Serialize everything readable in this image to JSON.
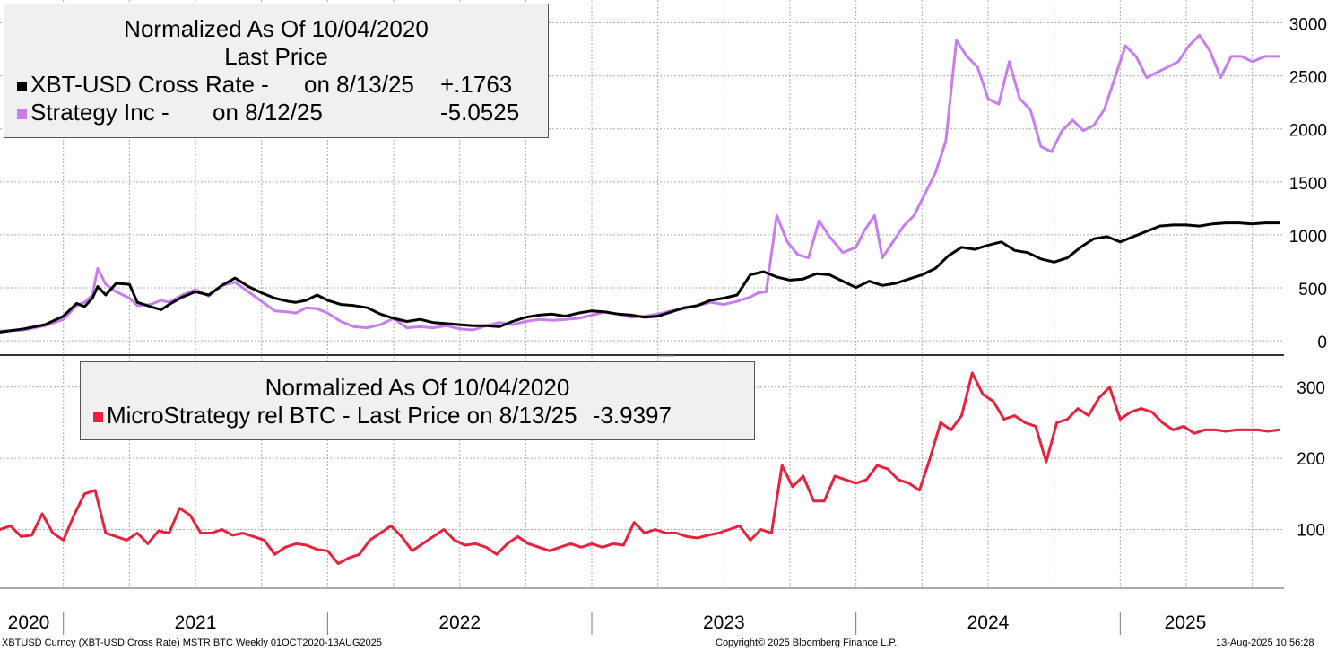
{
  "colors": {
    "btc": "#000000",
    "mstr": "#c77dee",
    "rel": "#e8213c",
    "grid": "#aaaaaa",
    "panel_border": "#333333",
    "legend_bg": "#f0f0f0"
  },
  "top_legend": {
    "title1": "Normalized As Of 10/04/2020",
    "title2": "Last Price",
    "row1_label": "XBT-USD Cross Rate -",
    "row1_date": "on 8/13/25",
    "row1_value": "+.1763",
    "row2_label": "Strategy Inc -",
    "row2_date": "on 8/12/25",
    "row2_value": "-5.0525"
  },
  "bottom_legend": {
    "title": "Normalized As Of 10/04/2020",
    "row_label": "MicroStrategy rel BTC - Last Price on 8/13/25",
    "row_value": "-3.9397"
  },
  "footer": {
    "left": "XBTUSD Curncy (XBT-USD Cross Rate) MSTR BTC  Weekly 01OCT2020-13AUG2025",
    "center": "Copyright© 2025 Bloomberg Finance L.P.",
    "right": "13-Aug-2025 10:56:28"
  },
  "chart_data": [
    {
      "type": "line",
      "title": "Normalized As Of 10/04/2020 Last Price",
      "xlabel": "",
      "ylabel": "",
      "x_range": [
        2020.76,
        2025.62
      ],
      "ylim": [
        -100,
        3080
      ],
      "yticks": [
        0,
        500,
        1000,
        1500,
        2000,
        2500,
        3000
      ],
      "series": [
        {
          "name": "XBT-USD Cross Rate",
          "color": "#000000",
          "x": [
            2020.76,
            2020.85,
            2020.93,
            2021.0,
            2021.05,
            2021.08,
            2021.11,
            2021.13,
            2021.16,
            2021.2,
            2021.25,
            2021.28,
            2021.33,
            2021.37,
            2021.4,
            2021.45,
            2021.5,
            2021.55,
            2021.6,
            2021.65,
            2021.7,
            2021.75,
            2021.8,
            2021.85,
            2021.88,
            2021.92,
            2021.96,
            2022.0,
            2022.05,
            2022.1,
            2022.15,
            2022.2,
            2022.25,
            2022.3,
            2022.35,
            2022.4,
            2022.45,
            2022.5,
            2022.55,
            2022.6,
            2022.65,
            2022.7,
            2022.75,
            2022.8,
            2022.85,
            2022.9,
            2022.95,
            2023.0,
            2023.05,
            2023.1,
            2023.15,
            2023.2,
            2023.25,
            2023.3,
            2023.35,
            2023.4,
            2023.45,
            2023.5,
            2023.55,
            2023.6,
            2023.65,
            2023.7,
            2023.75,
            2023.8,
            2023.85,
            2023.9,
            2023.95,
            2024.0,
            2024.05,
            2024.1,
            2024.15,
            2024.2,
            2024.25,
            2024.3,
            2024.35,
            2024.4,
            2024.45,
            2024.5,
            2024.55,
            2024.6,
            2024.65,
            2024.7,
            2024.75,
            2024.8,
            2024.85,
            2024.9,
            2024.95,
            2025.0,
            2025.05,
            2025.1,
            2025.15,
            2025.2,
            2025.25,
            2025.3,
            2025.35,
            2025.4,
            2025.45,
            2025.5,
            2025.55,
            2025.6
          ],
          "values": [
            100,
            130,
            170,
            250,
            370,
            340,
            420,
            530,
            450,
            560,
            550,
            380,
            340,
            310,
            360,
            430,
            480,
            450,
            540,
            610,
            530,
            470,
            420,
            390,
            380,
            400,
            450,
            400,
            360,
            350,
            330,
            270,
            230,
            200,
            220,
            190,
            180,
            170,
            160,
            160,
            150,
            200,
            240,
            260,
            270,
            250,
            280,
            300,
            290,
            270,
            260,
            240,
            250,
            290,
            330,
            350,
            400,
            420,
            450,
            640,
            670,
            620,
            590,
            600,
            650,
            640,
            580,
            520,
            580,
            540,
            560,
            600,
            640,
            700,
            820,
            900,
            880,
            920,
            950,
            870,
            850,
            790,
            760,
            800,
            900,
            980,
            1000,
            950,
            1000,
            1050,
            1100,
            1110,
            1110,
            1100,
            1120,
            1130,
            1130,
            1120,
            1130,
            1130
          ]
        },
        {
          "name": "Strategy Inc",
          "color": "#c77dee",
          "x": [
            2020.76,
            2020.85,
            2020.93,
            2021.0,
            2021.05,
            2021.08,
            2021.11,
            2021.13,
            2021.16,
            2021.2,
            2021.25,
            2021.28,
            2021.33,
            2021.37,
            2021.4,
            2021.45,
            2021.5,
            2021.55,
            2021.6,
            2021.65,
            2021.7,
            2021.75,
            2021.8,
            2021.85,
            2021.88,
            2021.92,
            2021.96,
            2022.0,
            2022.05,
            2022.1,
            2022.15,
            2022.2,
            2022.25,
            2022.3,
            2022.35,
            2022.4,
            2022.45,
            2022.5,
            2022.55,
            2022.6,
            2022.65,
            2022.7,
            2022.75,
            2022.8,
            2022.85,
            2022.9,
            2022.95,
            2023.0,
            2023.05,
            2023.1,
            2023.15,
            2023.2,
            2023.25,
            2023.3,
            2023.35,
            2023.4,
            2023.45,
            2023.5,
            2023.55,
            2023.6,
            2023.63,
            2023.66,
            2023.7,
            2023.74,
            2023.78,
            2023.82,
            2023.86,
            2023.9,
            2023.95,
            2024.0,
            2024.03,
            2024.07,
            2024.1,
            2024.14,
            2024.18,
            2024.22,
            2024.26,
            2024.3,
            2024.34,
            2024.38,
            2024.42,
            2024.46,
            2024.5,
            2024.54,
            2024.58,
            2024.62,
            2024.66,
            2024.7,
            2024.74,
            2024.78,
            2024.82,
            2024.86,
            2024.9,
            2024.94,
            2024.98,
            2025.02,
            2025.06,
            2025.1,
            2025.14,
            2025.18,
            2025.22,
            2025.26,
            2025.3,
            2025.34,
            2025.38,
            2025.42,
            2025.46,
            2025.5,
            2025.55,
            2025.6
          ],
          "values": [
            110,
            120,
            160,
            220,
            350,
            380,
            450,
            700,
            550,
            480,
            420,
            350,
            360,
            400,
            380,
            450,
            500,
            440,
            540,
            570,
            480,
            390,
            300,
            290,
            280,
            330,
            320,
            280,
            200,
            150,
            140,
            170,
            230,
            140,
            150,
            140,
            160,
            130,
            120,
            160,
            190,
            170,
            200,
            220,
            210,
            220,
            230,
            260,
            290,
            270,
            240,
            250,
            270,
            300,
            320,
            350,
            380,
            360,
            390,
            430,
            470,
            480,
            1200,
            950,
            830,
            800,
            1150,
            1000,
            850,
            900,
            1050,
            1200,
            800,
            950,
            1100,
            1200,
            1400,
            1600,
            1900,
            2850,
            2700,
            2600,
            2300,
            2250,
            2650,
            2300,
            2200,
            1850,
            1800,
            2000,
            2100,
            2000,
            2050,
            2200,
            2500,
            2800,
            2700,
            2500,
            2550,
            2600,
            2650,
            2800,
            2900,
            2750,
            2500,
            2700,
            2700,
            2650,
            2700,
            2700
          ]
        }
      ]
    },
    {
      "type": "line",
      "title": "Normalized As Of 10/04/2020",
      "xlabel": "",
      "ylabel": "",
      "x_range": [
        2020.76,
        2025.62
      ],
      "ylim": [
        20,
        340
      ],
      "yticks": [
        100,
        200,
        300
      ],
      "xtick_labels": [
        "2020",
        "2021",
        "2022",
        "2023",
        "2024",
        "2025"
      ],
      "series": [
        {
          "name": "MicroStrategy rel BTC",
          "color": "#e8213c",
          "x": [
            2020.76,
            2020.8,
            2020.84,
            2020.88,
            2020.92,
            2020.96,
            2021.0,
            2021.04,
            2021.08,
            2021.12,
            2021.16,
            2021.2,
            2021.24,
            2021.28,
            2021.32,
            2021.36,
            2021.4,
            2021.44,
            2021.48,
            2021.52,
            2021.56,
            2021.6,
            2021.64,
            2021.68,
            2021.72,
            2021.76,
            2021.8,
            2021.84,
            2021.88,
            2021.92,
            2021.96,
            2022.0,
            2022.04,
            2022.08,
            2022.12,
            2022.16,
            2022.2,
            2022.24,
            2022.28,
            2022.32,
            2022.36,
            2022.4,
            2022.44,
            2022.48,
            2022.52,
            2022.56,
            2022.6,
            2022.64,
            2022.68,
            2022.72,
            2022.76,
            2022.8,
            2022.84,
            2022.88,
            2022.92,
            2022.96,
            2023.0,
            2023.04,
            2023.08,
            2023.12,
            2023.16,
            2023.2,
            2023.24,
            2023.28,
            2023.32,
            2023.36,
            2023.4,
            2023.44,
            2023.48,
            2023.52,
            2023.56,
            2023.6,
            2023.64,
            2023.68,
            2023.72,
            2023.76,
            2023.8,
            2023.84,
            2023.88,
            2023.92,
            2023.96,
            2024.0,
            2024.04,
            2024.08,
            2024.12,
            2024.16,
            2024.2,
            2024.24,
            2024.28,
            2024.32,
            2024.36,
            2024.4,
            2024.44,
            2024.48,
            2024.52,
            2024.56,
            2024.6,
            2024.64,
            2024.68,
            2024.72,
            2024.76,
            2024.8,
            2024.84,
            2024.88,
            2024.92,
            2024.96,
            2025.0,
            2025.04,
            2025.08,
            2025.12,
            2025.16,
            2025.2,
            2025.24,
            2025.28,
            2025.32,
            2025.36,
            2025.4,
            2025.44,
            2025.48,
            2025.52,
            2025.56,
            2025.6
          ],
          "values": [
            100,
            105,
            90,
            92,
            122,
            95,
            85,
            120,
            150,
            155,
            95,
            90,
            85,
            95,
            80,
            98,
            95,
            130,
            120,
            95,
            95,
            100,
            92,
            95,
            90,
            85,
            65,
            75,
            80,
            78,
            72,
            70,
            52,
            60,
            65,
            85,
            95,
            105,
            90,
            70,
            80,
            90,
            100,
            85,
            78,
            80,
            75,
            65,
            80,
            90,
            80,
            75,
            70,
            75,
            80,
            75,
            80,
            75,
            80,
            78,
            110,
            95,
            100,
            95,
            95,
            90,
            88,
            92,
            95,
            100,
            105,
            85,
            100,
            95,
            190,
            160,
            175,
            140,
            140,
            175,
            170,
            165,
            170,
            190,
            185,
            170,
            165,
            155,
            200,
            250,
            240,
            260,
            320,
            290,
            280,
            255,
            260,
            250,
            245,
            195,
            250,
            255,
            270,
            260,
            285,
            300,
            255,
            265,
            270,
            265,
            250,
            240,
            245,
            235,
            240,
            240,
            238,
            240,
            240,
            240,
            238,
            240
          ]
        }
      ]
    }
  ]
}
